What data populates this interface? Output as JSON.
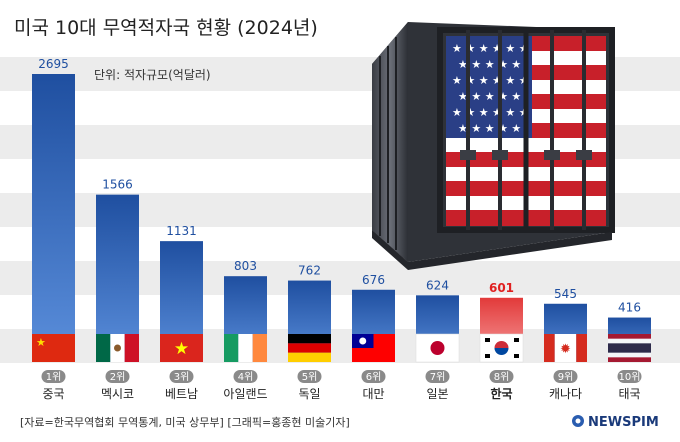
{
  "title": "미국 10대 무역적자국 현황 (2024년)",
  "unit_note": "단위: 적자규모(억달러)",
  "source_note": "[자료=한국무역협회 무역통계, 미국 상무부] [그래픽=홍종현 미술기자]",
  "brand": "NEWSPIM",
  "colors": {
    "bar": "#2a5db0",
    "bar_top": "#5b8bd6",
    "highlight": "#e02020",
    "rank_badge": "#8a8a8a"
  },
  "chart_data": {
    "type": "bar",
    "categories": [
      "중국",
      "멕시코",
      "베트남",
      "아일랜드",
      "독일",
      "대만",
      "일본",
      "한국",
      "캐나다",
      "태국"
    ],
    "ranks": [
      "1위",
      "2위",
      "3위",
      "4위",
      "5위",
      "6위",
      "7위",
      "8위",
      "9위",
      "10위"
    ],
    "values": [
      2695,
      1566,
      1131,
      803,
      762,
      676,
      624,
      601,
      545,
      416
    ],
    "value_labels": [
      "2695",
      "1566",
      "1131",
      "803",
      "762",
      "676",
      "624",
      "601",
      "545",
      "416"
    ],
    "highlight": "한국",
    "flags": [
      "china-flag",
      "mexico-flag",
      "vietnam-flag",
      "ireland-flag",
      "germany-flag",
      "taiwan-flag",
      "japan-flag",
      "korea-flag",
      "canada-flag",
      "thailand-flag"
    ],
    "ylim": [
      0,
      2800
    ]
  }
}
